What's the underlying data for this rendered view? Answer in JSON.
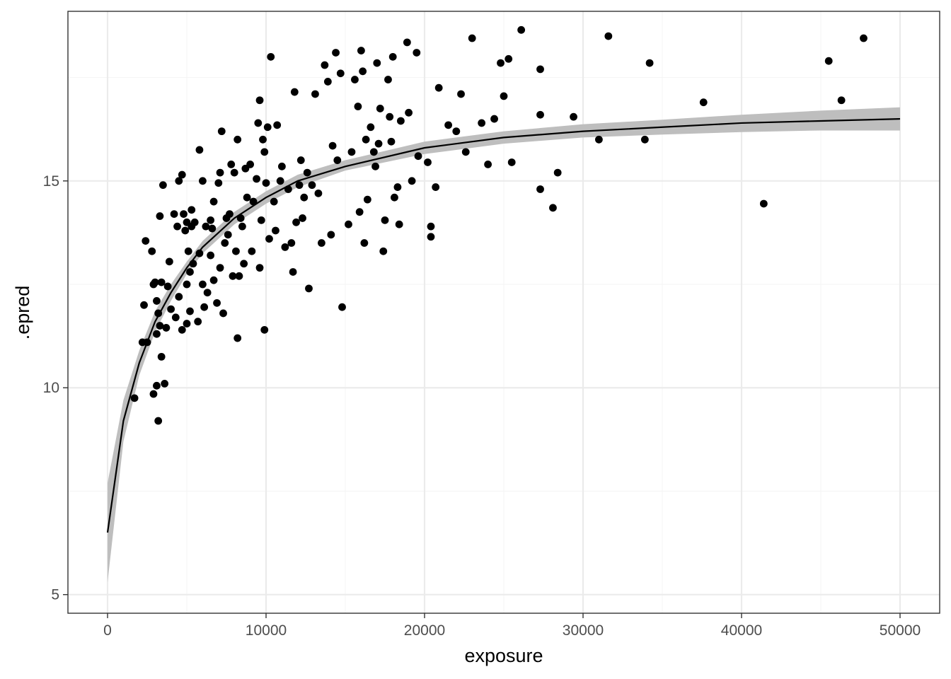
{
  "chart_data": {
    "type": "scatter",
    "title": "",
    "xlabel": "exposure",
    "ylabel": ".epred",
    "xlim": [
      -2500,
      52500
    ],
    "ylim": [
      4.55,
      19.1
    ],
    "x_ticks": [
      0,
      10000,
      20000,
      30000,
      40000,
      50000
    ],
    "x_tick_labels": [
      "0",
      "10000",
      "20000",
      "30000",
      "40000",
      "50000"
    ],
    "y_ticks": [
      5,
      10,
      15
    ],
    "y_tick_labels": [
      "5",
      "10",
      "15"
    ],
    "grid": true,
    "legend": "none",
    "colors": {
      "points": "#000000",
      "fit_line": "#000000",
      "ribbon": "#bebebe",
      "panel_border": "#333333",
      "grid_major": "#ebebeb",
      "grid_minor": "#f5f5f5",
      "tick_label": "#4d4d4d"
    },
    "fit_line": {
      "x": [
        0,
        1000,
        2000,
        3000,
        4000,
        5000,
        6000,
        8000,
        10000,
        12000,
        15000,
        20000,
        25000,
        30000,
        35000,
        40000,
        45000,
        50000
      ],
      "y": [
        6.5,
        9.2,
        10.6,
        11.6,
        12.3,
        12.9,
        13.4,
        14.1,
        14.6,
        15.0,
        15.35,
        15.8,
        16.05,
        16.2,
        16.3,
        16.4,
        16.45,
        16.5
      ]
    },
    "ribbon": {
      "x": [
        0,
        1000,
        2000,
        3000,
        4000,
        5000,
        6000,
        8000,
        10000,
        12000,
        15000,
        20000,
        25000,
        30000,
        35000,
        40000,
        45000,
        50000
      ],
      "lower": [
        5.3,
        8.7,
        10.3,
        11.35,
        12.1,
        12.75,
        13.25,
        13.95,
        14.45,
        14.85,
        15.25,
        15.65,
        15.9,
        16.05,
        16.12,
        16.18,
        16.22,
        16.22
      ],
      "upper": [
        7.7,
        9.7,
        10.9,
        11.85,
        12.5,
        13.05,
        13.55,
        14.25,
        14.75,
        15.15,
        15.5,
        15.95,
        16.2,
        16.37,
        16.48,
        16.6,
        16.7,
        16.78
      ]
    },
    "series": [
      {
        "points": [
          [
            1700,
            9.75
          ],
          [
            2200,
            11.1
          ],
          [
            2300,
            12.0
          ],
          [
            2400,
            13.55
          ],
          [
            2500,
            11.1
          ],
          [
            2800,
            13.3
          ],
          [
            2900,
            12.5
          ],
          [
            2900,
            9.85
          ],
          [
            3000,
            12.55
          ],
          [
            3100,
            11.3
          ],
          [
            3100,
            12.1
          ],
          [
            3100,
            10.05
          ],
          [
            3200,
            9.2
          ],
          [
            3200,
            11.8
          ],
          [
            3300,
            11.5
          ],
          [
            3300,
            14.15
          ],
          [
            3400,
            12.55
          ],
          [
            3400,
            10.75
          ],
          [
            3500,
            14.9
          ],
          [
            3600,
            10.1
          ],
          [
            3700,
            11.45
          ],
          [
            3800,
            12.45
          ],
          [
            3900,
            13.05
          ],
          [
            4000,
            11.9
          ],
          [
            4200,
            14.2
          ],
          [
            4300,
            11.7
          ],
          [
            4400,
            13.9
          ],
          [
            4500,
            15.0
          ],
          [
            4500,
            12.2
          ],
          [
            4700,
            11.4
          ],
          [
            4700,
            15.15
          ],
          [
            4800,
            14.2
          ],
          [
            4900,
            13.8
          ],
          [
            5000,
            12.5
          ],
          [
            5000,
            11.55
          ],
          [
            5000,
            14.0
          ],
          [
            5100,
            13.3
          ],
          [
            5200,
            12.8
          ],
          [
            5200,
            11.85
          ],
          [
            5300,
            13.9
          ],
          [
            5300,
            14.3
          ],
          [
            5400,
            13.0
          ],
          [
            5500,
            14.0
          ],
          [
            5700,
            11.6
          ],
          [
            5800,
            15.75
          ],
          [
            5800,
            13.25
          ],
          [
            6000,
            12.5
          ],
          [
            6000,
            15.0
          ],
          [
            6100,
            11.95
          ],
          [
            6200,
            13.9
          ],
          [
            6300,
            12.3
          ],
          [
            6500,
            14.05
          ],
          [
            6500,
            13.2
          ],
          [
            6600,
            13.85
          ],
          [
            6700,
            14.5
          ],
          [
            6700,
            12.6
          ],
          [
            6900,
            12.05
          ],
          [
            7000,
            14.95
          ],
          [
            7100,
            12.9
          ],
          [
            7100,
            15.2
          ],
          [
            7200,
            16.2
          ],
          [
            7300,
            11.8
          ],
          [
            7400,
            13.5
          ],
          [
            7500,
            14.1
          ],
          [
            7600,
            13.7
          ],
          [
            7700,
            14.2
          ],
          [
            7800,
            15.4
          ],
          [
            7900,
            12.7
          ],
          [
            8000,
            15.2
          ],
          [
            8100,
            13.3
          ],
          [
            8200,
            16.0
          ],
          [
            8200,
            11.2
          ],
          [
            8300,
            12.7
          ],
          [
            8400,
            14.1
          ],
          [
            8500,
            13.9
          ],
          [
            8600,
            13.0
          ],
          [
            8700,
            15.3
          ],
          [
            8800,
            14.6
          ],
          [
            9000,
            15.4
          ],
          [
            9100,
            13.3
          ],
          [
            9200,
            14.5
          ],
          [
            9400,
            15.05
          ],
          [
            9500,
            16.4
          ],
          [
            9600,
            16.95
          ],
          [
            9600,
            12.9
          ],
          [
            9700,
            14.05
          ],
          [
            9800,
            16.0
          ],
          [
            9900,
            15.7
          ],
          [
            9900,
            11.4
          ],
          [
            10000,
            14.95
          ],
          [
            10100,
            16.3
          ],
          [
            10200,
            13.6
          ],
          [
            10300,
            18.0
          ],
          [
            10500,
            14.5
          ],
          [
            10600,
            13.8
          ],
          [
            10700,
            16.35
          ],
          [
            10900,
            15.0
          ],
          [
            11000,
            15.35
          ],
          [
            11200,
            13.4
          ],
          [
            11400,
            14.8
          ],
          [
            11600,
            13.5
          ],
          [
            11700,
            12.8
          ],
          [
            11800,
            17.15
          ],
          [
            11900,
            14.0
          ],
          [
            12100,
            14.9
          ],
          [
            12200,
            15.5
          ],
          [
            12300,
            14.1
          ],
          [
            12400,
            14.6
          ],
          [
            12600,
            15.2
          ],
          [
            12700,
            12.4
          ],
          [
            12900,
            14.9
          ],
          [
            13100,
            17.1
          ],
          [
            13300,
            14.7
          ],
          [
            13500,
            13.5
          ],
          [
            13700,
            17.8
          ],
          [
            13900,
            17.4
          ],
          [
            14100,
            13.7
          ],
          [
            14200,
            15.85
          ],
          [
            14400,
            18.1
          ],
          [
            14500,
            15.5
          ],
          [
            14700,
            17.6
          ],
          [
            14800,
            11.95
          ],
          [
            15200,
            13.95
          ],
          [
            15400,
            15.7
          ],
          [
            15600,
            17.45
          ],
          [
            15800,
            16.8
          ],
          [
            15900,
            14.25
          ],
          [
            16000,
            18.15
          ],
          [
            16100,
            17.65
          ],
          [
            16200,
            13.5
          ],
          [
            16300,
            16.0
          ],
          [
            16400,
            14.55
          ],
          [
            16600,
            16.3
          ],
          [
            16800,
            15.7
          ],
          [
            16900,
            15.35
          ],
          [
            17000,
            17.85
          ],
          [
            17100,
            15.9
          ],
          [
            17200,
            16.75
          ],
          [
            17400,
            13.3
          ],
          [
            17500,
            14.05
          ],
          [
            17700,
            17.45
          ],
          [
            17800,
            16.55
          ],
          [
            17900,
            15.95
          ],
          [
            18000,
            18.0
          ],
          [
            18100,
            14.6
          ],
          [
            18300,
            14.85
          ],
          [
            18400,
            13.95
          ],
          [
            18500,
            16.45
          ],
          [
            18900,
            18.35
          ],
          [
            19000,
            16.65
          ],
          [
            19200,
            15.0
          ],
          [
            19500,
            18.1
          ],
          [
            19600,
            15.6
          ],
          [
            20200,
            15.45
          ],
          [
            20400,
            13.9
          ],
          [
            20400,
            13.65
          ],
          [
            20700,
            14.85
          ],
          [
            20900,
            17.25
          ],
          [
            21500,
            16.35
          ],
          [
            22000,
            16.2
          ],
          [
            22300,
            17.1
          ],
          [
            22600,
            15.7
          ],
          [
            23000,
            18.45
          ],
          [
            23600,
            16.4
          ],
          [
            24000,
            15.4
          ],
          [
            24400,
            16.5
          ],
          [
            24800,
            17.85
          ],
          [
            25000,
            17.05
          ],
          [
            25300,
            17.95
          ],
          [
            25500,
            15.45
          ],
          [
            26100,
            18.65
          ],
          [
            27300,
            16.6
          ],
          [
            27300,
            17.7
          ],
          [
            27300,
            14.8
          ],
          [
            28100,
            14.35
          ],
          [
            28400,
            15.2
          ],
          [
            29400,
            16.55
          ],
          [
            31000,
            16.0
          ],
          [
            31600,
            18.5
          ],
          [
            33900,
            16.0
          ],
          [
            34200,
            17.85
          ],
          [
            37600,
            16.9
          ],
          [
            41400,
            14.45
          ],
          [
            45500,
            17.9
          ],
          [
            46300,
            16.95
          ],
          [
            47700,
            18.45
          ]
        ]
      }
    ]
  }
}
